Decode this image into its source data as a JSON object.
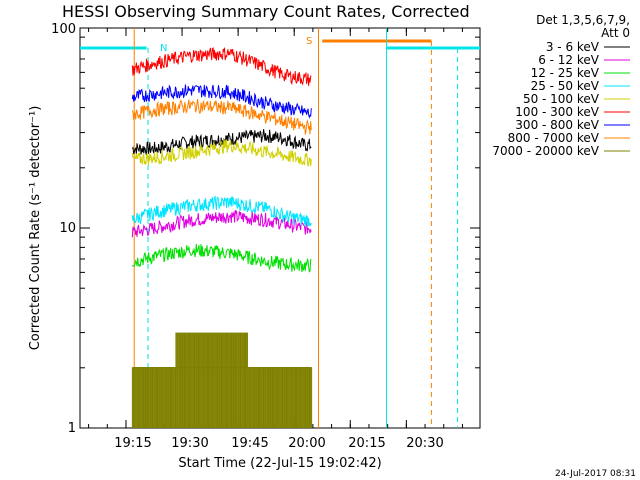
{
  "chart_data": {
    "type": "line",
    "title": "HESSI Observing Summary Count Rates, Corrected",
    "xlabel": "Start Time (22-Jul-15 19:02:42)",
    "ylabel": "Corrected Count Rate (s⁻¹ detector⁻¹)",
    "ylog": true,
    "xlim_minutes": [
      0,
      107
    ],
    "ylim": [
      1,
      100
    ],
    "x_ticks": [
      "19:15",
      "19:30",
      "19:45",
      "20:00",
      "20:15",
      "20:30"
    ],
    "y_ticks": [
      "1",
      "10",
      "100"
    ],
    "legend_header": [
      "Det 1,3,5,6,7,9,",
      "Att 0"
    ],
    "legend_position": "right",
    "footer": "24-Jul-2017 08:31",
    "flags": {
      "N": "N",
      "S": "S"
    },
    "colors": {
      "night": "#00e5e5",
      "saa": "#ff7f00",
      "axis": "#000000"
    },
    "series": [
      {
        "name": "3 - 6 keV",
        "color": "#000000",
        "x": [
          14,
          20,
          30,
          40,
          50,
          55,
          60,
          62
        ],
        "y": [
          25,
          25,
          27,
          28,
          29,
          28,
          26,
          26
        ]
      },
      {
        "name": "6 - 12 keV",
        "color": "#e000e0",
        "x": [
          14,
          20,
          30,
          40,
          50,
          55,
          60,
          62
        ],
        "y": [
          9.5,
          10,
          11,
          11.5,
          11,
          10.5,
          10,
          10
        ]
      },
      {
        "name": "12 - 25 keV",
        "color": "#00e000",
        "x": [
          14,
          20,
          30,
          40,
          50,
          55,
          60,
          62
        ],
        "y": [
          6.8,
          7.2,
          7.8,
          7.5,
          6.8,
          6.6,
          6.5,
          6.5
        ]
      },
      {
        "name": "25 - 50 keV",
        "color": "#00e5ff",
        "x": [
          14,
          20,
          30,
          40,
          50,
          55,
          60,
          62
        ],
        "y": [
          11,
          12,
          13,
          13.5,
          12.5,
          11.5,
          11,
          11
        ]
      },
      {
        "name": "50 - 100 keV",
        "color": "#d0d000",
        "x": [
          14,
          20,
          30,
          40,
          50,
          55,
          60,
          62
        ],
        "y": [
          22,
          22.5,
          24,
          26,
          24,
          23,
          22,
          22
        ]
      },
      {
        "name": "100 - 300 keV",
        "color": "#ff0000",
        "x": [
          14,
          20,
          30,
          40,
          50,
          55,
          60,
          62
        ],
        "y": [
          62,
          67,
          73,
          75,
          63,
          58,
          56,
          55
        ]
      },
      {
        "name": "300 - 800 keV",
        "color": "#0000ff",
        "x": [
          14,
          20,
          30,
          40,
          50,
          55,
          60,
          62
        ],
        "y": [
          45,
          47,
          49,
          48,
          42,
          40,
          38,
          37
        ]
      },
      {
        "name": "800 - 7000 keV",
        "color": "#ff8000",
        "x": [
          14,
          20,
          30,
          40,
          50,
          55,
          60,
          62
        ],
        "y": [
          37,
          39,
          41,
          40,
          36,
          34,
          32,
          32
        ]
      },
      {
        "name": "7000 - 20000 keV",
        "color": "#808000",
        "x": [
          14,
          20,
          30,
          40,
          50,
          55,
          60,
          62
        ],
        "y": [
          1.5,
          1.5,
          2.4,
          2.5,
          1.5,
          1.5,
          1.5,
          1.5
        ]
      }
    ]
  }
}
